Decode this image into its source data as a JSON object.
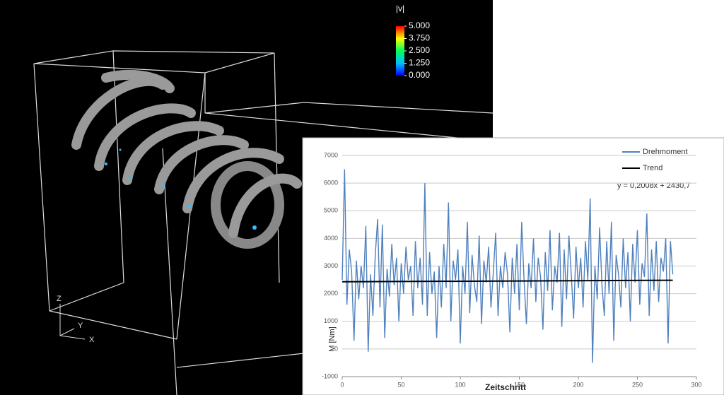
{
  "scene": {
    "axis_labels": [
      "Z",
      "Y",
      "X"
    ]
  },
  "chart_data": [
    {
      "type": "line",
      "x_label": "Zeitschritt",
      "y_label": "M [Nm]",
      "annotation": "y = 0,2008x + 2430,7",
      "xlim": [
        0,
        300
      ],
      "xticks": [
        0,
        50,
        100,
        150,
        200,
        250,
        300
      ],
      "ylim": [
        -1000,
        7000
      ],
      "yticks": [
        -1000,
        0,
        1000,
        2000,
        3000,
        4000,
        5000,
        6000,
        7000
      ],
      "grid": true,
      "legend": "top-right",
      "series": [
        {
          "name": "Drehmoment",
          "color": "#4f81bd",
          "x": [
            0,
            2,
            4,
            6,
            8,
            10,
            12,
            14,
            16,
            18,
            20,
            22,
            24,
            26,
            28,
            30,
            32,
            34,
            36,
            38,
            40,
            42,
            44,
            46,
            48,
            50,
            52,
            54,
            56,
            58,
            60,
            62,
            64,
            66,
            68,
            70,
            72,
            74,
            76,
            78,
            80,
            82,
            84,
            86,
            88,
            90,
            92,
            94,
            96,
            98,
            100,
            102,
            104,
            106,
            108,
            110,
            112,
            114,
            116,
            118,
            120,
            122,
            124,
            126,
            128,
            130,
            132,
            134,
            136,
            138,
            140,
            142,
            144,
            146,
            148,
            150,
            152,
            154,
            156,
            158,
            160,
            162,
            164,
            166,
            168,
            170,
            172,
            174,
            176,
            178,
            180,
            182,
            184,
            186,
            188,
            190,
            192,
            194,
            196,
            198,
            200,
            202,
            204,
            206,
            208,
            210,
            212,
            214,
            216,
            218,
            220,
            222,
            224,
            226,
            228,
            230,
            232,
            234,
            236,
            238,
            240,
            242,
            244,
            246,
            248,
            250,
            252,
            254,
            256,
            258,
            260,
            262,
            264,
            266,
            268,
            270,
            272,
            274,
            276,
            278,
            280
          ],
          "values": [
            2500,
            6500,
            1600,
            3600,
            2800,
            300,
            3200,
            1800,
            3000,
            2200,
            4450,
            -100,
            2700,
            1200,
            3400,
            4700,
            1500,
            4500,
            400,
            2900,
            1900,
            3800,
            2300,
            3300,
            1000,
            3100,
            2000,
            3700,
            2500,
            3000,
            1200,
            3900,
            2200,
            3300,
            1600,
            6000,
            1200,
            3500,
            2000,
            2800,
            400,
            3000,
            1500,
            3800,
            2200,
            5300,
            1000,
            3200,
            2500,
            3600,
            200,
            3000,
            2000,
            4600,
            1300,
            3400,
            2300,
            1700,
            4100,
            900,
            3200,
            2400,
            3700,
            1500,
            2800,
            4200,
            1200,
            3000,
            2200,
            3500,
            2700,
            600,
            3300,
            2000,
            3800,
            1400,
            4600,
            2500,
            900,
            3100,
            2200,
            4000,
            1700,
            3300,
            2600,
            700,
            3500,
            2100,
            4300,
            1400,
            3000,
            2400,
            4200,
            800,
            3600,
            1800,
            4100,
            2700,
            1100,
            3700,
            2200,
            3300,
            1500,
            3900,
            2500,
            5450,
            -500,
            3000,
            1800,
            4400,
            2300,
            1200,
            3900,
            2000,
            4600,
            300,
            3400,
            2700,
            1500,
            4000,
            2200,
            3500,
            1000,
            3800,
            2400,
            4300,
            1600,
            3100,
            2600,
            4900,
            1200,
            3600,
            2100,
            3900,
            1700,
            3300,
            2800,
            4000,
            200,
            3900,
            2700
          ]
        },
        {
          "name": "Trend",
          "color": "#000000",
          "x": [
            0,
            280
          ],
          "values": [
            2430.7,
            2486.9
          ]
        }
      ]
    },
    {
      "type": "colorbar",
      "title": "|v|",
      "ylim": [
        0,
        5
      ],
      "yticks": [
        {
          "value": 5,
          "label": "5.000"
        },
        {
          "value": 3.75,
          "label": "3.750"
        },
        {
          "value": 2.5,
          "label": "2.500"
        },
        {
          "value": 1.25,
          "label": "1.250"
        },
        {
          "value": 0,
          "label": "0.000"
        }
      ],
      "colors": [
        "#0000ff",
        "#00c0ff",
        "#00ff60",
        "#ffff00",
        "#ff0000"
      ]
    }
  ]
}
